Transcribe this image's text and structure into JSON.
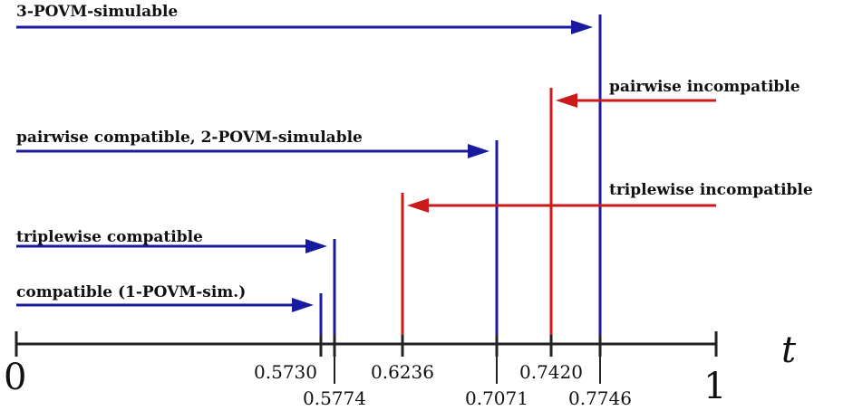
{
  "axis": {
    "start_label": "0",
    "end_label": "1",
    "variable_label": "t",
    "min": 0,
    "max": 1
  },
  "colors": {
    "compatible": "#1a1aa0",
    "incompatible": "#cc1a1a",
    "axis": "#222222",
    "text": "#111111"
  },
  "thresholds": [
    {
      "id": "t0",
      "value": 0.573,
      "label": "0.5730",
      "color": "compatible"
    },
    {
      "id": "t1",
      "value": 0.5774,
      "label": "0.5774",
      "color": "compatible"
    },
    {
      "id": "t2",
      "value": 0.6236,
      "label": "0.6236",
      "color": "incompatible"
    },
    {
      "id": "t3",
      "value": 0.7071,
      "label": "0.7071",
      "color": "compatible"
    },
    {
      "id": "t4",
      "value": 0.742,
      "label": "0.7420",
      "color": "incompatible"
    },
    {
      "id": "t5",
      "value": 0.7746,
      "label": "0.7746",
      "color": "compatible"
    }
  ],
  "regions": [
    {
      "id": "r0",
      "label": "3-POVM-simulable",
      "threshold": "t5",
      "direction": "right",
      "color": "compatible"
    },
    {
      "id": "r1",
      "label": "pairwise incompatible",
      "threshold": "t4",
      "direction": "left",
      "color": "incompatible"
    },
    {
      "id": "r2",
      "label": "pairwise compatible, 2-POVM-simulable",
      "threshold": "t3",
      "direction": "right",
      "color": "compatible"
    },
    {
      "id": "r3",
      "label": "triplewise incompatible",
      "threshold": "t2",
      "direction": "left",
      "color": "incompatible"
    },
    {
      "id": "r4",
      "label": "triplewise compatible",
      "threshold": "t1",
      "direction": "right",
      "color": "compatible"
    },
    {
      "id": "r5",
      "label": "compatible (1-POVM-sim.)",
      "threshold": "t0",
      "direction": "right",
      "color": "compatible"
    }
  ]
}
